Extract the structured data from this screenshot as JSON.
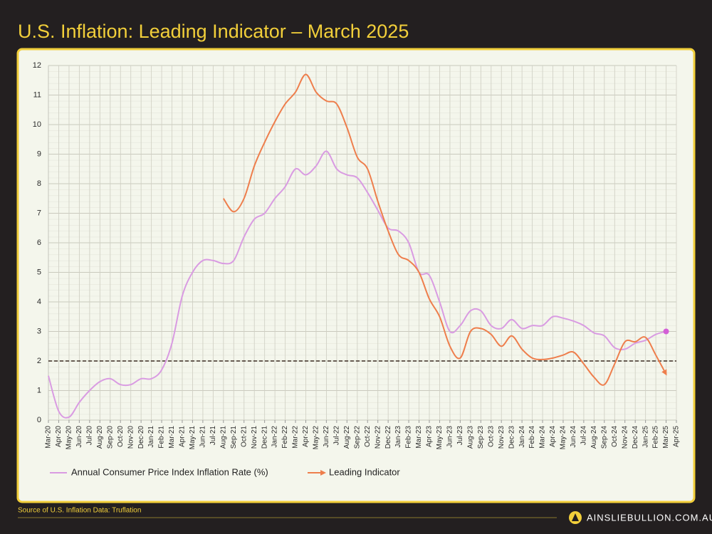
{
  "chart_data": {
    "type": "line",
    "title": "U.S. Inflation: Leading Indicator – March 2025",
    "categories": [
      "Mar-20",
      "Apr-20",
      "May-20",
      "Jun-20",
      "Jul-20",
      "Aug-20",
      "Sep-20",
      "Oct-20",
      "Nov-20",
      "Dec-20",
      "Jan-21",
      "Feb-21",
      "Mar-21",
      "Apr-21",
      "May-21",
      "Jun-21",
      "Jul-21",
      "Aug-21",
      "Sep-21",
      "Oct-21",
      "Nov-21",
      "Dec-21",
      "Jan-22",
      "Feb-22",
      "Mar-22",
      "Apr-22",
      "May-22",
      "Jun-22",
      "Jul-22",
      "Aug-22",
      "Sep-22",
      "Oct-22",
      "Nov-22",
      "Dec-22",
      "Jan-23",
      "Feb-23",
      "Mar-23",
      "Apr-23",
      "May-23",
      "Jun-23",
      "Jul-23",
      "Aug-23",
      "Sep-23",
      "Oct-23",
      "Nov-23",
      "Dec-23",
      "Jan-24",
      "Feb-24",
      "Mar-24",
      "Apr-24",
      "May-24",
      "Jun-24",
      "Jul-24",
      "Aug-24",
      "Sep-24",
      "Oct-24",
      "Nov-24",
      "Dec-24",
      "Jan-25",
      "Feb-25",
      "Mar-25",
      "Apr-25"
    ],
    "series": [
      {
        "name": "Annual Consumer Price Index Inflation Rate (%)",
        "color": "#d99be2",
        "values": [
          1.5,
          0.3,
          0.1,
          0.6,
          1.0,
          1.3,
          1.4,
          1.2,
          1.2,
          1.4,
          1.4,
          1.7,
          2.6,
          4.2,
          5.0,
          5.4,
          5.4,
          5.3,
          5.4,
          6.2,
          6.8,
          7.0,
          7.5,
          7.9,
          8.5,
          8.3,
          8.6,
          9.1,
          8.5,
          8.3,
          8.2,
          7.7,
          7.1,
          6.5,
          6.4,
          6.0,
          5.0,
          4.9,
          4.0,
          3.0,
          3.2,
          3.7,
          3.7,
          3.2,
          3.1,
          3.4,
          3.1,
          3.2,
          3.2,
          3.5,
          3.45,
          3.35,
          3.2,
          2.95,
          2.85,
          2.45,
          2.4,
          2.6,
          2.7,
          2.9,
          3.0,
          null
        ]
      },
      {
        "name": "Leading Indicator",
        "color": "#ee7e4c",
        "values": [
          null,
          null,
          null,
          null,
          null,
          null,
          null,
          null,
          null,
          null,
          null,
          null,
          null,
          null,
          null,
          null,
          null,
          7.5,
          7.05,
          7.5,
          8.6,
          9.4,
          10.1,
          10.7,
          11.1,
          11.7,
          11.1,
          10.8,
          10.7,
          9.9,
          8.9,
          8.5,
          7.4,
          6.4,
          5.6,
          5.4,
          5.0,
          4.1,
          3.5,
          2.5,
          2.1,
          3.0,
          3.1,
          2.9,
          2.5,
          2.85,
          2.4,
          2.1,
          2.05,
          2.1,
          2.2,
          2.3,
          1.9,
          1.45,
          1.2,
          1.9,
          2.65,
          2.65,
          2.8,
          2.2,
          1.55,
          null
        ]
      }
    ],
    "ylim": [
      0,
      12
    ],
    "yticks": [
      0,
      1,
      2,
      3,
      4,
      5,
      6,
      7,
      8,
      9,
      10,
      11,
      12
    ],
    "grid": true,
    "reference_line": 2,
    "source": "Source of U.S. Inflation Data: Truflation",
    "brand": "AINSLIEBULLION.COM.AU"
  }
}
